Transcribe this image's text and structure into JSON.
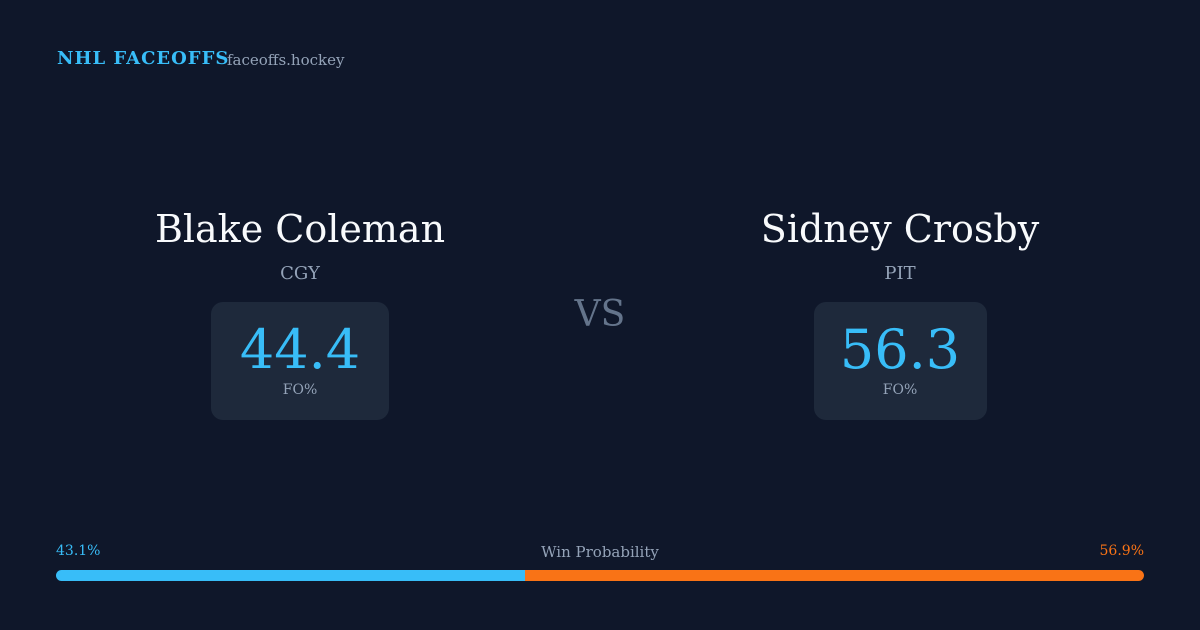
{
  "header": {
    "title": "NHL FACEOFFS",
    "site": "faceoffs.hockey"
  },
  "players": [
    {
      "name": "Blake Coleman",
      "team": "CGY",
      "stat": 44.4,
      "stat_label": "FO%"
    },
    {
      "name": "Sidney Crosby",
      "team": "PIT",
      "stat": 56.3,
      "stat_label": "FO%"
    }
  ],
  "versus": "VS",
  "win_probability": {
    "label": "Win Probability",
    "values": [
      43.1,
      56.9
    ],
    "value_labels": [
      "43.1%",
      "56.9%"
    ],
    "colors": [
      "#38bdf8",
      "#f97316"
    ]
  }
}
